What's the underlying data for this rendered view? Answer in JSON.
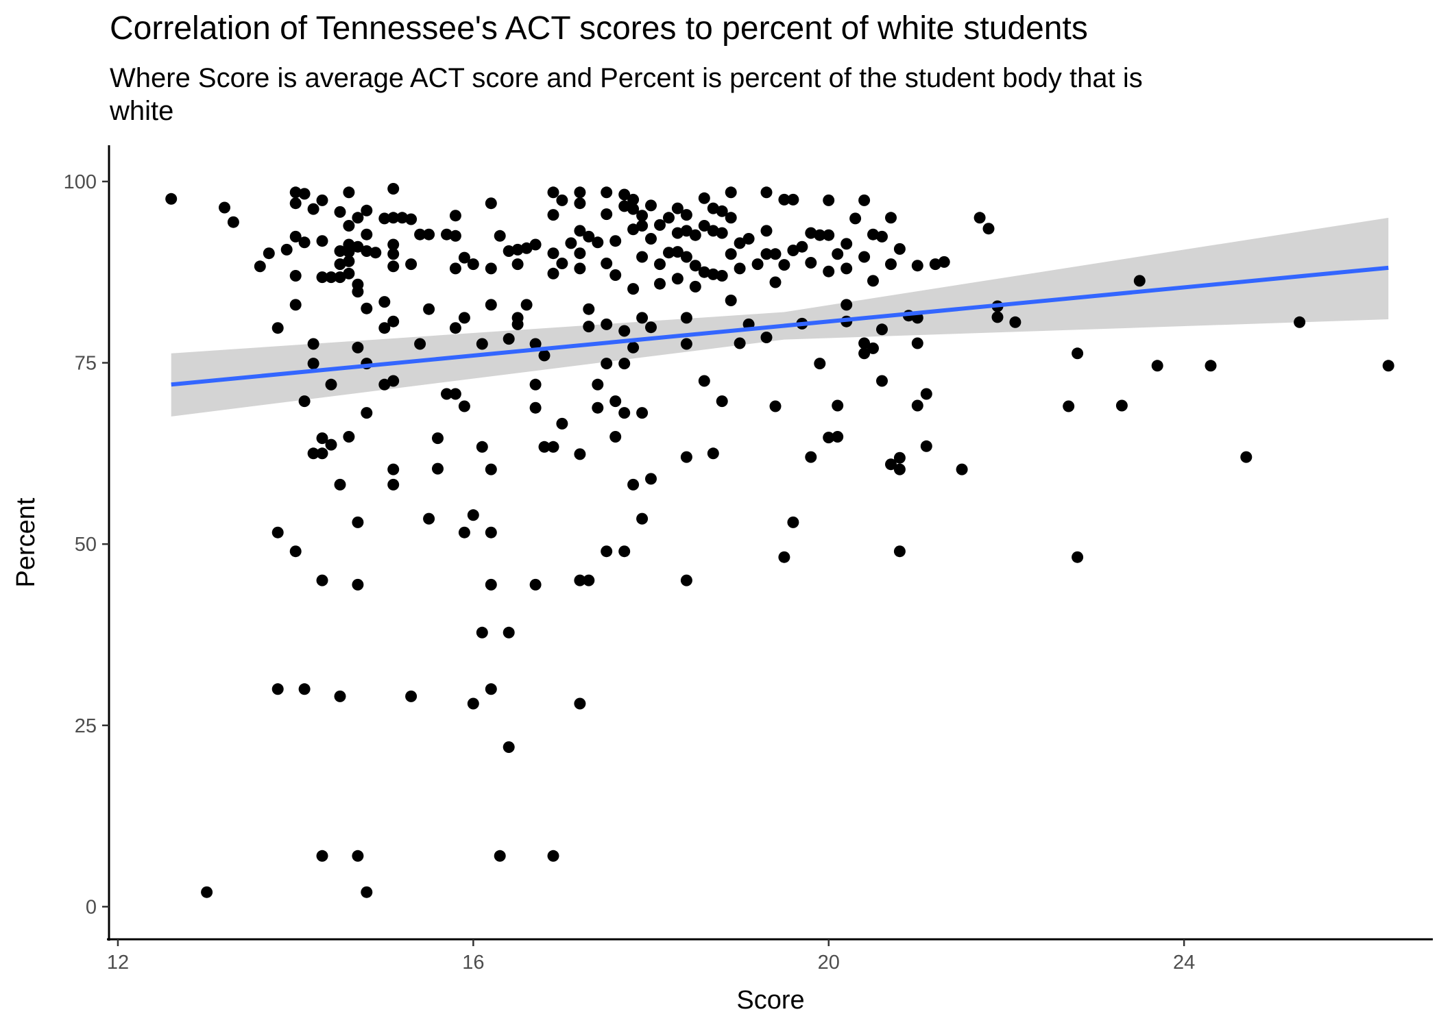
{
  "chart_data": {
    "type": "scatter",
    "title": "Correlation of Tennessee's ACT scores to percent of white students",
    "subtitle": "Where Score is average ACT score and Percent is percent of the student body that is white",
    "xlabel": "Score",
    "ylabel": "Percent",
    "xlim": [
      11.9,
      26.8
    ],
    "ylim": [
      -4.5,
      105
    ],
    "x_ticks": [
      12,
      16,
      20,
      24
    ],
    "y_ticks": [
      0,
      25,
      50,
      75,
      100
    ],
    "grid": false,
    "colors": {
      "points": "#000000",
      "trend_line": "#3366ff",
      "confidence_band": "#cccccc"
    },
    "trend_line": {
      "x": [
        12.6,
        26.3
      ],
      "y": [
        72.0,
        88.1
      ]
    },
    "confidence_band": {
      "x": [
        12.6,
        19.5,
        26.3
      ],
      "lower": [
        67.6,
        78.2,
        81.0
      ],
      "upper": [
        76.3,
        82.0,
        95.0
      ]
    },
    "points": {
      "x": [
        12.6,
        13.0,
        13.2,
        13.3,
        13.6,
        13.7,
        13.8,
        13.8,
        13.8,
        13.9,
        14.0,
        14.0,
        14.0,
        14.0,
        14.0,
        14.0,
        14.1,
        14.1,
        14.1,
        14.1,
        14.2,
        14.2,
        14.2,
        14.2,
        14.3,
        14.3,
        14.3,
        14.3,
        14.3,
        14.3,
        14.3,
        14.4,
        14.4,
        14.4,
        14.5,
        14.5,
        14.5,
        14.5,
        14.5,
        14.5,
        14.6,
        14.6,
        14.6,
        14.6,
        14.6,
        14.6,
        14.6,
        14.7,
        14.7,
        14.7,
        14.7,
        14.7,
        14.7,
        14.7,
        14.8,
        14.8,
        14.8,
        14.8,
        14.8,
        14.8,
        14.8,
        14.9,
        15.0,
        15.0,
        15.0,
        15.0,
        15.1,
        15.1,
        15.1,
        15.1,
        15.1,
        15.1,
        15.1,
        15.1,
        15.3,
        15.3,
        15.3,
        15.4,
        15.4,
        15.5,
        15.5,
        15.5,
        15.6,
        15.6,
        15.7,
        15.7,
        15.8,
        15.8,
        15.8,
        15.8,
        15.8,
        15.9,
        15.9,
        15.9,
        15.9,
        16.0,
        16.0,
        16.1,
        16.1,
        16.1,
        16.2,
        16.2,
        16.2,
        16.2,
        16.2,
        16.2,
        16.3,
        16.3,
        16.4,
        16.4,
        16.4,
        16.4,
        16.5,
        16.5,
        16.5,
        16.5,
        16.6,
        16.6,
        16.7,
        16.7,
        16.7,
        16.7,
        16.7,
        16.8,
        16.9,
        16.9,
        16.9,
        16.9,
        16.9,
        16.9,
        17.0,
        17.0,
        17.0,
        17.1,
        17.2,
        17.2,
        17.2,
        17.2,
        17.2,
        17.2,
        17.2,
        17.2,
        17.3,
        17.3,
        17.3,
        17.3,
        17.4,
        17.4,
        17.4,
        17.5,
        17.5,
        17.5,
        17.5,
        17.5,
        17.5,
        17.6,
        17.6,
        17.6,
        17.7,
        17.7,
        17.7,
        17.7,
        17.7,
        17.7,
        17.8,
        17.8,
        17.8,
        17.8,
        17.8,
        17.8,
        17.9,
        17.9,
        17.9,
        17.9,
        17.9,
        17.9,
        18.0,
        18.0,
        18.0,
        18.1,
        18.1,
        18.1,
        18.2,
        18.2,
        18.3,
        18.3,
        18.3,
        18.3,
        18.4,
        18.4,
        18.4,
        18.4,
        18.4,
        18.4,
        18.5,
        18.5,
        18.5,
        18.6,
        18.6,
        18.6,
        18.6,
        18.7,
        18.7,
        18.7,
        18.7,
        18.8,
        18.8,
        18.8,
        18.8,
        18.9,
        18.9,
        18.9,
        18.9,
        19.0,
        19.0,
        19.0,
        19.1,
        19.2,
        19.3,
        19.3,
        19.3,
        19.3,
        19.4,
        19.4,
        19.4,
        19.5,
        19.5,
        19.5,
        19.6,
        19.6,
        19.6,
        19.7,
        19.7,
        19.8,
        19.8,
        19.9,
        19.9,
        20.0,
        20.0,
        20.0,
        20.0,
        20.1,
        20.1,
        20.1,
        20.2,
        20.2,
        20.2,
        20.2,
        20.3,
        20.4,
        20.4,
        20.4,
        20.4,
        20.5,
        20.5,
        20.5,
        20.6,
        20.6,
        20.6,
        20.7,
        20.7,
        20.8,
        20.8,
        20.8,
        20.8,
        20.9,
        21.0,
        21.0,
        21.0,
        21.0,
        21.1,
        21.1,
        21.2,
        21.3,
        21.5,
        21.7,
        21.8,
        21.9,
        21.9,
        22.1,
        22.7,
        22.8,
        22.8,
        23.3,
        23.5,
        23.7,
        24.3,
        24.7,
        25.3,
        26.3,
        16.2,
        16.0,
        15.2,
        18.0,
        17.6,
        18.4,
        19.1,
        19.8,
        20.7,
        16.8,
        14.7,
        15.1
      ],
      "y": [
        97.6,
        2.0,
        96.4,
        94.4,
        88.3,
        90.1,
        79.8,
        51.6,
        30.0,
        90.6,
        98.5,
        97.0,
        92.4,
        87.0,
        83.0,
        49.0,
        98.3,
        91.6,
        69.7,
        30.0,
        96.2,
        77.6,
        74.9,
        62.5,
        97.4,
        91.8,
        86.8,
        64.6,
        62.5,
        45.0,
        7.0,
        86.8,
        72.0,
        63.7,
        95.8,
        90.4,
        88.6,
        86.8,
        58.2,
        29.0,
        98.5,
        93.9,
        91.3,
        90.3,
        89.0,
        87.3,
        64.8,
        91.0,
        85.8,
        84.8,
        77.1,
        53.0,
        44.4,
        7.0,
        96.0,
        92.7,
        90.4,
        82.5,
        74.9,
        68.1,
        2.0,
        90.2,
        94.9,
        83.4,
        79.8,
        72.0,
        95.0,
        91.3,
        90.0,
        88.3,
        80.7,
        60.3,
        58.2,
        72.5,
        94.8,
        88.6,
        29.0,
        92.7,
        77.6,
        92.7,
        82.4,
        53.5,
        60.4,
        64.6,
        92.7,
        70.7,
        95.3,
        92.5,
        88.0,
        79.8,
        70.7,
        89.5,
        81.2,
        69.0,
        51.6,
        88.6,
        28.0,
        77.6,
        63.4,
        37.8,
        88.0,
        83.0,
        60.3,
        51.6,
        44.4,
        30.0,
        92.5,
        7.0,
        90.4,
        78.3,
        37.8,
        22.0,
        90.6,
        88.6,
        81.2,
        80.3,
        90.8,
        83.0,
        91.3,
        77.6,
        72.0,
        68.8,
        44.4,
        63.4,
        98.5,
        95.4,
        90.1,
        87.3,
        63.4,
        7.0,
        97.4,
        88.7,
        66.6,
        91.5,
        98.5,
        97.0,
        93.2,
        90.1,
        88.0,
        62.4,
        45.0,
        28.0,
        92.4,
        82.4,
        80.0,
        45.0,
        91.6,
        72.0,
        68.8,
        98.5,
        95.5,
        88.7,
        80.3,
        74.9,
        49.0,
        91.8,
        87.1,
        69.7,
        98.2,
        96.6,
        79.4,
        74.9,
        68.1,
        49.0,
        97.5,
        96.2,
        93.4,
        85.2,
        77.1,
        58.2,
        95.3,
        93.9,
        89.6,
        81.2,
        68.1,
        53.5,
        96.7,
        92.1,
        79.9,
        94.0,
        88.6,
        85.9,
        95.0,
        90.2,
        96.3,
        92.9,
        90.3,
        86.6,
        95.4,
        93.2,
        89.6,
        81.2,
        77.6,
        45.0,
        92.6,
        88.4,
        85.5,
        97.7,
        93.9,
        87.5,
        72.5,
        96.3,
        93.2,
        87.2,
        62.5,
        95.9,
        92.9,
        87.0,
        69.7,
        98.5,
        95.0,
        90.0,
        83.6,
        91.5,
        88.0,
        77.7,
        92.1,
        88.6,
        98.5,
        93.2,
        90.0,
        78.5,
        90.0,
        86.1,
        69.0,
        97.5,
        88.5,
        48.2,
        97.5,
        90.5,
        53.0,
        91.0,
        80.4,
        92.9,
        88.8,
        92.6,
        74.9,
        97.4,
        92.6,
        87.6,
        64.7,
        90.0,
        69.1,
        64.8,
        91.4,
        88.0,
        83.0,
        80.7,
        94.9,
        97.4,
        89.6,
        77.7,
        76.3,
        92.7,
        86.3,
        77.0,
        92.4,
        79.6,
        72.5,
        95.0,
        88.6,
        90.7,
        61.9,
        60.3,
        49.0,
        81.5,
        88.4,
        81.2,
        77.7,
        69.1,
        70.7,
        63.5,
        88.6,
        88.9,
        60.3,
        95.0,
        93.5,
        82.8,
        81.3,
        80.6,
        69.0,
        76.3,
        48.2,
        69.1,
        86.3,
        74.6,
        74.6,
        62.0,
        80.6,
        74.6,
        97.0,
        54.0,
        95.0,
        59.0,
        64.8,
        62.0,
        80.3,
        62.0,
        61.0,
        76.0,
        95.0,
        99.0
      ]
    }
  }
}
